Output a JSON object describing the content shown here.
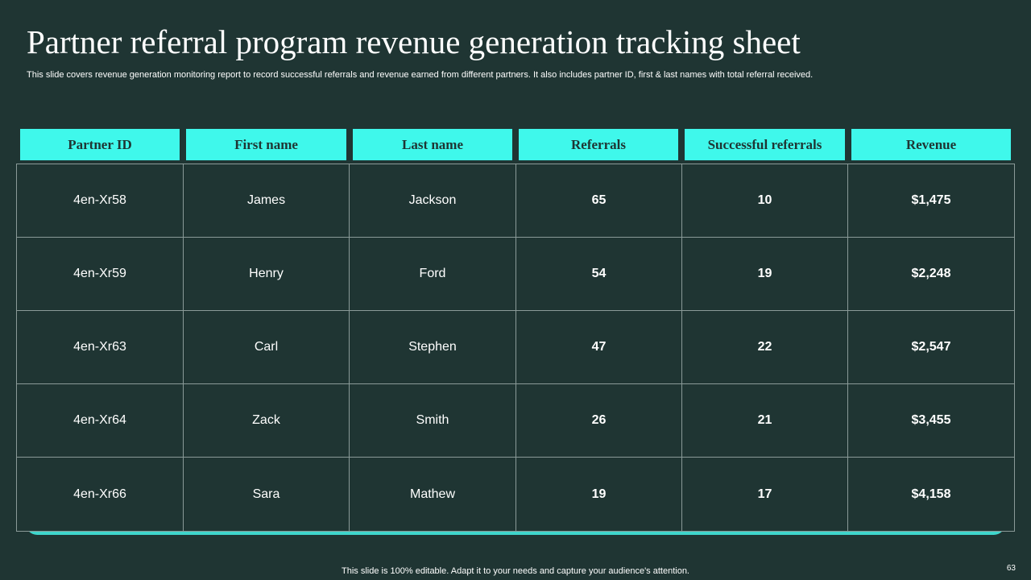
{
  "title": "Partner referral program revenue generation tracking sheet",
  "subtitle": "This slide covers revenue generation monitoring report to record successful referrals and revenue earned from different partners. It also includes partner ID, first & last names with total referral received.",
  "table": {
    "headers": [
      "Partner ID",
      "First name",
      "Last name",
      "Referrals",
      "Successful referrals",
      "Revenue"
    ],
    "rows": [
      [
        "4en-Xr58",
        "James",
        "Jackson",
        "65",
        "10",
        "$1,475"
      ],
      [
        "4en-Xr59",
        "Henry",
        "Ford",
        "54",
        "19",
        "$2,248"
      ],
      [
        "4en-Xr63",
        "Carl",
        "Stephen",
        "47",
        "22",
        "$2,547"
      ],
      [
        "4en-Xr64",
        "Zack",
        "Smith",
        "26",
        "21",
        "$3,455"
      ],
      [
        "4en-Xr66",
        "Sara",
        "Mathew",
        "19",
        "17",
        "$4,158"
      ]
    ]
  },
  "footer": "This slide is 100% editable. Adapt it to your needs and capture your audience's attention.",
  "page_number": "63",
  "colors": {
    "background": "#1f3533",
    "header_fill": "#3ff8eb",
    "header_text": "#1f3533",
    "accent_bar": "#3fd6cc",
    "grid_line": "#8a9a98"
  }
}
